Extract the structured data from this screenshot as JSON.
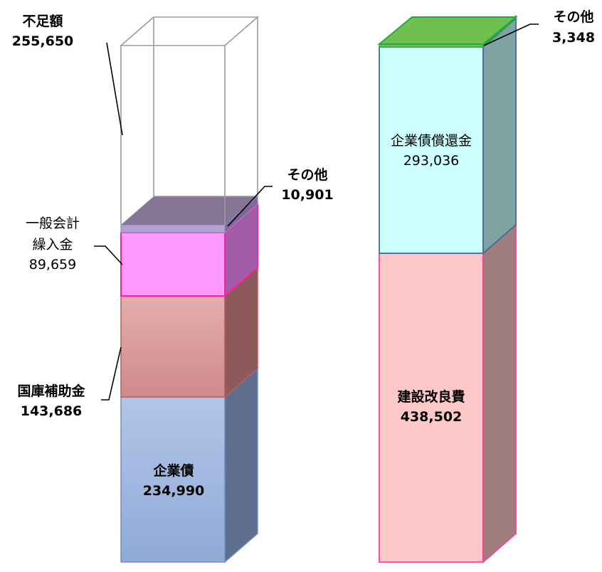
{
  "chart_data": {
    "type": "bar",
    "stacked": true,
    "three_d": true,
    "bars": [
      {
        "segments": [
          {
            "label": "企業債",
            "value": "234,990",
            "v": 234990,
            "color": "#9cb4dc"
          },
          {
            "label": "国庫補助金",
            "value": "143,686",
            "v": 143686,
            "color": "#d99a9a"
          },
          {
            "label": "一般会計繰入金",
            "value": "89,659",
            "v": 89659,
            "color": "#ff99ff"
          },
          {
            "label": "その他",
            "value": "10,901",
            "v": 10901,
            "color": "#b4a0d2"
          },
          {
            "label": "不足額",
            "value": "255,650",
            "v": 255650,
            "color": "none"
          }
        ]
      },
      {
        "segments": [
          {
            "label": "建設改良費",
            "value": "438,502",
            "v": 438502,
            "color": "#fec8c8"
          },
          {
            "label": "企業債償還金",
            "value": "293,036",
            "v": 293036,
            "color": "#ccffff"
          },
          {
            "label": "その他",
            "value": "3,348",
            "v": 3348,
            "color": "#70c050"
          }
        ]
      }
    ]
  },
  "labels": {
    "left": {
      "deficit": {
        "name": "不足額",
        "value": "255,650"
      },
      "other": {
        "name": "その他",
        "value": "10,901"
      },
      "general_line1": "一般会計",
      "general_line2": "繰入金",
      "general_value": "89,659",
      "subsidy": {
        "name": "国庫補助金",
        "value": "143,686"
      },
      "bond": {
        "name": "企業債",
        "value": "234,990"
      }
    },
    "right": {
      "other": {
        "name": "その他",
        "value": "3,348"
      },
      "repay": {
        "name": "企業債償還金",
        "value": "293,036"
      },
      "construction": {
        "name": "建設改良費",
        "value": "438,502"
      }
    }
  }
}
